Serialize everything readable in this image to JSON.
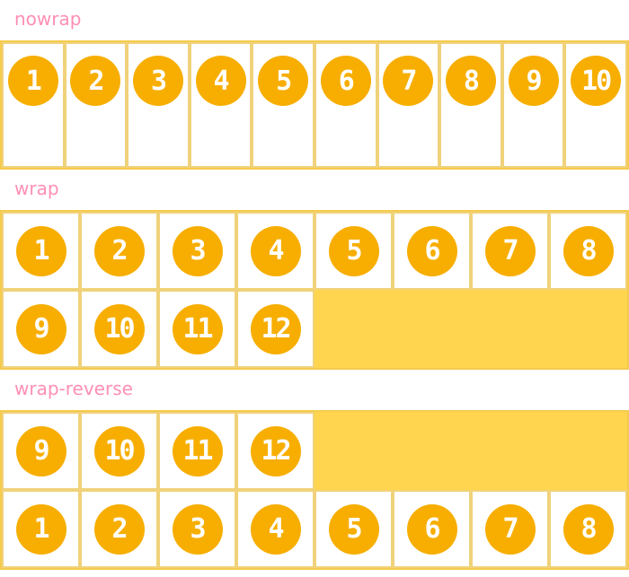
{
  "colors": {
    "label": "#ff8fb4",
    "container": "#ffd54f",
    "circle": "#f7ae00"
  },
  "sections": [
    {
      "label": "nowrap",
      "mode": "nowrap",
      "items": [
        "1",
        "2",
        "3",
        "4",
        "5",
        "6",
        "7",
        "8",
        "9",
        "10"
      ]
    },
    {
      "label": "wrap",
      "mode": "wrap",
      "items": [
        "1",
        "2",
        "3",
        "4",
        "5",
        "6",
        "7",
        "8",
        "9",
        "10",
        "11",
        "12"
      ]
    },
    {
      "label": "wrap-reverse",
      "mode": "wrap-reverse",
      "items": [
        "1",
        "2",
        "3",
        "4",
        "5",
        "6",
        "7",
        "8",
        "9",
        "10",
        "11",
        "12"
      ]
    }
  ]
}
